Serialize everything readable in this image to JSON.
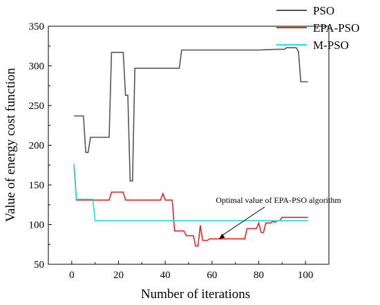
{
  "chart_data": {
    "type": "line",
    "title": "",
    "xlabel": "Number of iterations",
    "ylabel": "Value of energy cost function",
    "xlim": [
      -10,
      110
    ],
    "ylim": [
      50,
      350
    ],
    "xticks": [
      0,
      20,
      40,
      60,
      80,
      100
    ],
    "yticks": [
      50,
      100,
      150,
      200,
      250,
      300,
      350
    ],
    "grid": false,
    "legend_position": "top-right, outside plot area",
    "annotation": {
      "text": "Optimal value of EPA-PSO algorithm",
      "points_to": {
        "x": 63,
        "y": 82
      }
    },
    "series": [
      {
        "name": "PSO",
        "color": "#555555",
        "x": [
          1,
          2,
          5,
          6,
          7,
          8,
          9,
          16,
          17,
          22,
          23,
          24,
          25,
          26,
          27,
          28,
          46,
          47,
          48,
          55,
          60,
          70,
          80,
          88,
          90,
          91,
          92,
          96,
          97,
          98,
          100,
          101
        ],
        "y": [
          237,
          237,
          237,
          191,
          191,
          210,
          210,
          210,
          317,
          317,
          263,
          263,
          155,
          155,
          297,
          297,
          297,
          320,
          320,
          320,
          320,
          320,
          320,
          321,
          321,
          321,
          323,
          323,
          318,
          280,
          280,
          280
        ]
      },
      {
        "name": "EPA-PSO",
        "color": "#ee2222",
        "x": [
          1,
          2,
          15,
          16,
          17,
          22,
          23,
          38,
          39,
          40,
          41,
          43,
          44,
          48,
          49,
          52,
          53,
          54,
          55,
          56,
          58,
          59,
          70,
          74,
          75,
          79,
          80,
          81,
          82,
          83,
          85,
          86,
          87,
          88,
          89,
          90,
          93,
          101
        ],
        "y": [
          173,
          131,
          131,
          131,
          141,
          141,
          131,
          131,
          139,
          131,
          131,
          131,
          92,
          92,
          86,
          86,
          73,
          73,
          99,
          80,
          80,
          82,
          82,
          82,
          95,
          95,
          102,
          90,
          90,
          102,
          102,
          104,
          103,
          105,
          105,
          109,
          109,
          109
        ]
      },
      {
        "name": "M-PSO",
        "color": "#22dddd",
        "x": [
          1,
          2,
          9,
          10,
          20,
          40,
          60,
          80,
          101
        ],
        "y": [
          177,
          132,
          132,
          105,
          105,
          105,
          105,
          105,
          105
        ]
      }
    ]
  }
}
